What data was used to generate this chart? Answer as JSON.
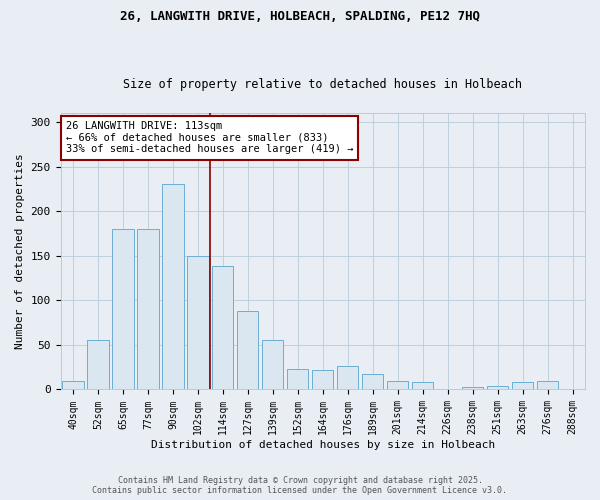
{
  "title1": "26, LANGWITH DRIVE, HOLBEACH, SPALDING, PE12 7HQ",
  "title2": "Size of property relative to detached houses in Holbeach",
  "xlabel": "Distribution of detached houses by size in Holbeach",
  "ylabel": "Number of detached properties",
  "categories": [
    "40sqm",
    "52sqm",
    "65sqm",
    "77sqm",
    "90sqm",
    "102sqm",
    "114sqm",
    "127sqm",
    "139sqm",
    "152sqm",
    "164sqm",
    "176sqm",
    "189sqm",
    "201sqm",
    "214sqm",
    "226sqm",
    "238sqm",
    "251sqm",
    "263sqm",
    "276sqm",
    "288sqm"
  ],
  "values": [
    10,
    55,
    180,
    180,
    230,
    150,
    138,
    88,
    55,
    23,
    22,
    26,
    17,
    9,
    8,
    0,
    3,
    4,
    8,
    10,
    0
  ],
  "bar_color": "#dae6f0",
  "bar_edge_color": "#6baed6",
  "vline_index": 6,
  "annotation_text_line1": "26 LANGWITH DRIVE: 113sqm",
  "annotation_text_line2": "← 66% of detached houses are smaller (833)",
  "annotation_text_line3": "33% of semi-detached houses are larger (419) →",
  "annotation_box_color": "white",
  "annotation_box_edge_color": "#8b0000",
  "vline_color": "#8b0000",
  "footer_line1": "Contains HM Land Registry data © Crown copyright and database right 2025.",
  "footer_line2": "Contains public sector information licensed under the Open Government Licence v3.0.",
  "ylim": [
    0,
    310
  ],
  "yticks": [
    0,
    50,
    100,
    150,
    200,
    250,
    300
  ],
  "bg_color": "#e8eef4",
  "grid_color": "#b8ccd8",
  "title1_fontsize": 9,
  "title2_fontsize": 8.5
}
